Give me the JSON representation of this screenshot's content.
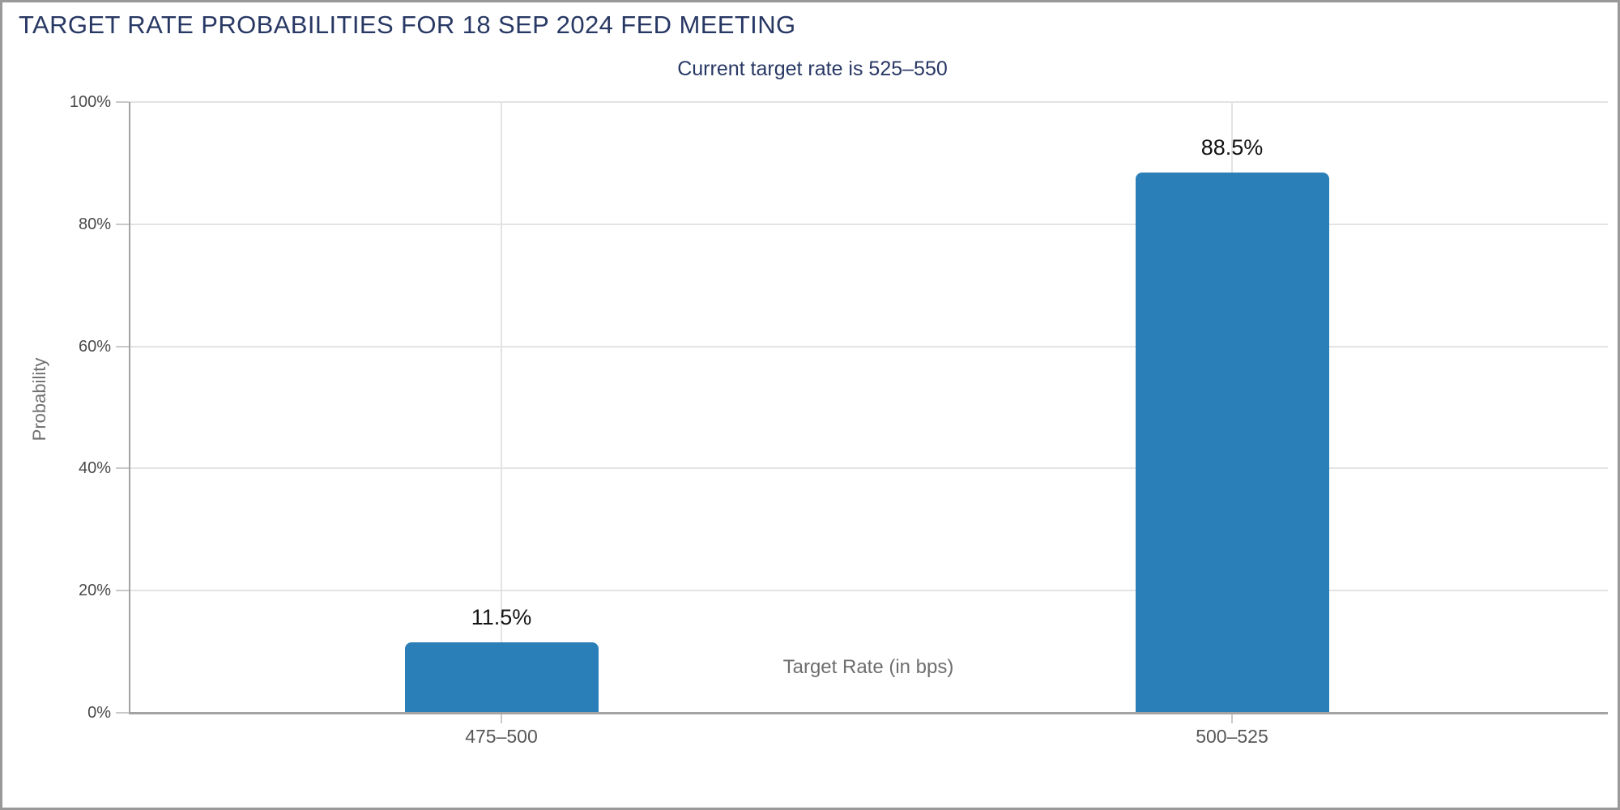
{
  "page": {
    "title": "TARGET RATE PROBABILITIES FOR 18 SEP 2024 FED MEETING",
    "subtitle": "Current target rate is 525–550"
  },
  "chart_data": {
    "type": "bar",
    "title": "TARGET RATE PROBABILITIES FOR 18 SEP 2024 FED MEETING",
    "subtitle": "Current target rate is 525–550",
    "categories": [
      "475–500",
      "500–525"
    ],
    "values": [
      11.5,
      88.5
    ],
    "value_labels": [
      "11.5%",
      "88.5%"
    ],
    "xlabel": "Target Rate (in bps)",
    "ylabel": "Probability",
    "ylim": [
      0,
      100
    ],
    "yticks": [
      0,
      20,
      40,
      60,
      80,
      100
    ],
    "ytick_labels": [
      "0%",
      "20%",
      "40%",
      "60%",
      "80%",
      "100%"
    ],
    "grid": true,
    "legend": false
  },
  "colors": {
    "title": "#283864",
    "subtitle": "#283864",
    "bar": "#2b7fb8",
    "gridline": "#e3e3e3",
    "axis_line": "#a3a3a3",
    "tick_mark": "#c9c9c9",
    "y_tick_label": "#4a4a4a",
    "x_tick_label": "#575757",
    "axis_title": "#6e6e6e",
    "value_label": "#141414",
    "window_border": "#999999"
  }
}
